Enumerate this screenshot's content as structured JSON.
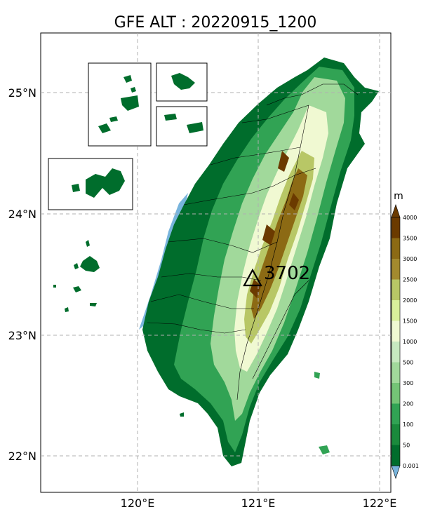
{
  "title": "GFE ALT : 20220915_1200",
  "axes": {
    "x_ticks": [
      "120°E",
      "121°E",
      "122°E"
    ],
    "y_ticks": [
      "25°N",
      "24°N",
      "23°N",
      "22°N"
    ]
  },
  "colorbar": {
    "unit": "m",
    "levels": [
      "0.001",
      "50",
      "100",
      "200",
      "300",
      "500",
      "1000",
      "1500",
      "2000",
      "2500",
      "3000",
      "3500",
      "4000"
    ],
    "colors": [
      "#006d2c",
      "#1a8a3c",
      "#31a354",
      "#74c476",
      "#a1d99b",
      "#c7e9c0",
      "#f0f9d2",
      "#d9ef9b",
      "#b8c766",
      "#a38a2e",
      "#8c6a14",
      "#6b3a00"
    ],
    "under_color": "#78b4dc",
    "over_color": "#6b3a00"
  },
  "annotation": {
    "peak_value": "3702",
    "marker": "triangle-icon"
  }
}
